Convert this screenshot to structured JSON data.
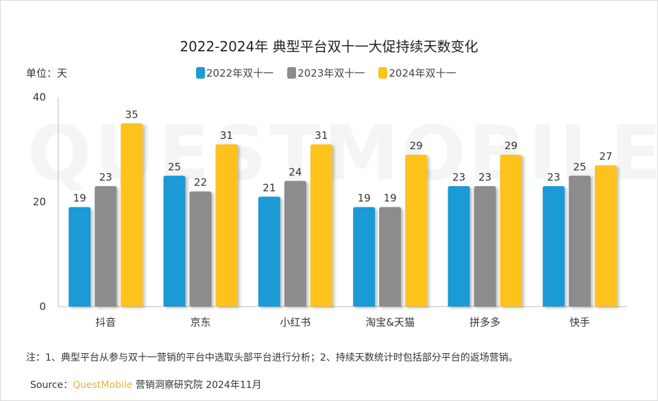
{
  "chart_data": {
    "type": "bar",
    "title": "2022-2024年 典型平台双十一大促持续天数变化",
    "unit_label": "单位：天",
    "categories": [
      "抖音",
      "京东",
      "小红书",
      "淘宝&天猫",
      "拼多多",
      "快手"
    ],
    "series": [
      {
        "name": "2022年双十一",
        "color": "#1e9ad6",
        "values": [
          19,
          25,
          21,
          19,
          23,
          23
        ]
      },
      {
        "name": "2023年双十一",
        "color": "#8c8c8c",
        "values": [
          23,
          22,
          24,
          19,
          23,
          25
        ]
      },
      {
        "name": "2024年双十一",
        "color": "#fdc31a",
        "values": [
          35,
          31,
          31,
          29,
          29,
          27
        ]
      }
    ],
    "ylim": [
      0,
      40
    ],
    "yticks": [
      0,
      20,
      40
    ],
    "grid": false,
    "legend_position": "top",
    "data_labels": true
  },
  "watermark": "QUESTMOBILE",
  "footer": {
    "note": "注：1、典型平台从参与双十一营销的平台中选取头部平台进行分析；2、持续天数统计时包括部分平台的返场营销。",
    "source_prefix": "Source：",
    "source_brand": "QuestMobile",
    "source_rest": " 营销洞察研究院 2024年11月"
  }
}
